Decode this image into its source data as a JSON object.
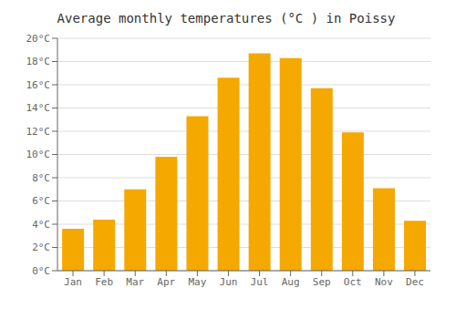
{
  "chart_data": {
    "type": "bar",
    "title": "Average monthly temperatures (°C ) in Poissy",
    "categories": [
      "Jan",
      "Feb",
      "Mar",
      "Apr",
      "May",
      "Jun",
      "Jul",
      "Aug",
      "Sep",
      "Oct",
      "Nov",
      "Dec"
    ],
    "values": [
      3.6,
      4.4,
      7.0,
      9.8,
      13.3,
      16.6,
      18.7,
      18.3,
      15.7,
      11.9,
      7.1,
      4.3
    ],
    "color": "#F5A800",
    "ylim": [
      0,
      20
    ],
    "yticks": [
      {
        "value": 0,
        "label": "0°C"
      },
      {
        "value": 2,
        "label": "2°C"
      },
      {
        "value": 4,
        "label": "4°C"
      },
      {
        "value": 6,
        "label": "6°C"
      },
      {
        "value": 8,
        "label": "8°C"
      },
      {
        "value": 10,
        "label": "10°C"
      },
      {
        "value": 12,
        "label": "12°C"
      },
      {
        "value": 14,
        "label": "14°C"
      },
      {
        "value": 16,
        "label": "16°C"
      },
      {
        "value": 18,
        "label": "18°C"
      },
      {
        "value": 20,
        "label": "20°C"
      }
    ],
    "grid": true
  }
}
